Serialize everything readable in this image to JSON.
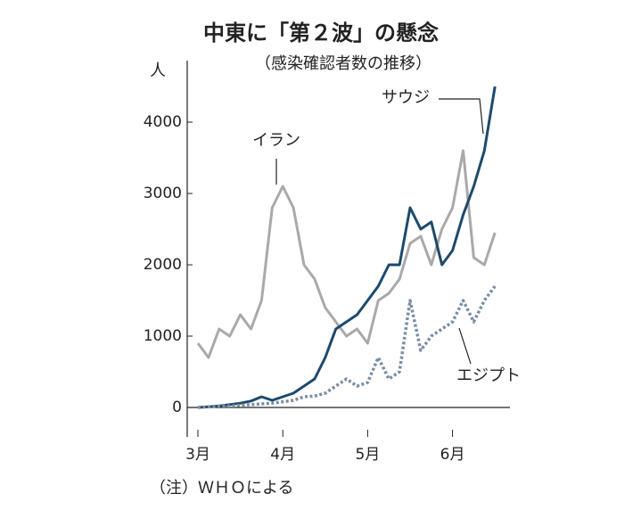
{
  "chart_data": {
    "type": "line",
    "title": "中東に「第２波」の懸念",
    "subtitle": "（感染確認者数の推移）",
    "y_unit": "人",
    "note": "（注）ＷＨＯによる",
    "categories": [
      "3月",
      null,
      null,
      null,
      null,
      null,
      null,
      null,
      "4月",
      null,
      null,
      null,
      null,
      null,
      null,
      null,
      "5月",
      null,
      null,
      null,
      null,
      null,
      null,
      null,
      "6月",
      null,
      null,
      null,
      null
    ],
    "ylim": [
      -400,
      4800
    ],
    "yticks": [
      0,
      1000,
      2000,
      3000,
      4000
    ],
    "series": [
      {
        "name": "イラン",
        "color": "#a9a9ab",
        "style": "solid",
        "values": [
          900,
          700,
          1100,
          1000,
          1300,
          1100,
          1500,
          2800,
          3100,
          2800,
          2000,
          1800,
          1400,
          1200,
          1000,
          1100,
          900,
          1500,
          1600,
          1800,
          2300,
          2400,
          2000,
          2500,
          2800,
          3600,
          2100,
          2000,
          2450
        ]
      },
      {
        "name": "サウジ",
        "color": "#1c4a6e",
        "style": "solid",
        "values": [
          0,
          10,
          20,
          40,
          60,
          90,
          150,
          100,
          150,
          200,
          300,
          400,
          700,
          1100,
          1200,
          1300,
          1500,
          1700,
          2000,
          2000,
          2800,
          2500,
          2600,
          2000,
          2200,
          2700,
          3100,
          3600,
          4500
        ]
      },
      {
        "name": "エジプト",
        "color": "#7a8ea6",
        "style": "dotted",
        "values": [
          0,
          10,
          20,
          20,
          30,
          40,
          50,
          60,
          80,
          100,
          150,
          160,
          200,
          300,
          400,
          300,
          350,
          700,
          400,
          500,
          1500,
          800,
          1000,
          1100,
          1200,
          1500,
          1200,
          1500,
          1700
        ]
      }
    ]
  }
}
